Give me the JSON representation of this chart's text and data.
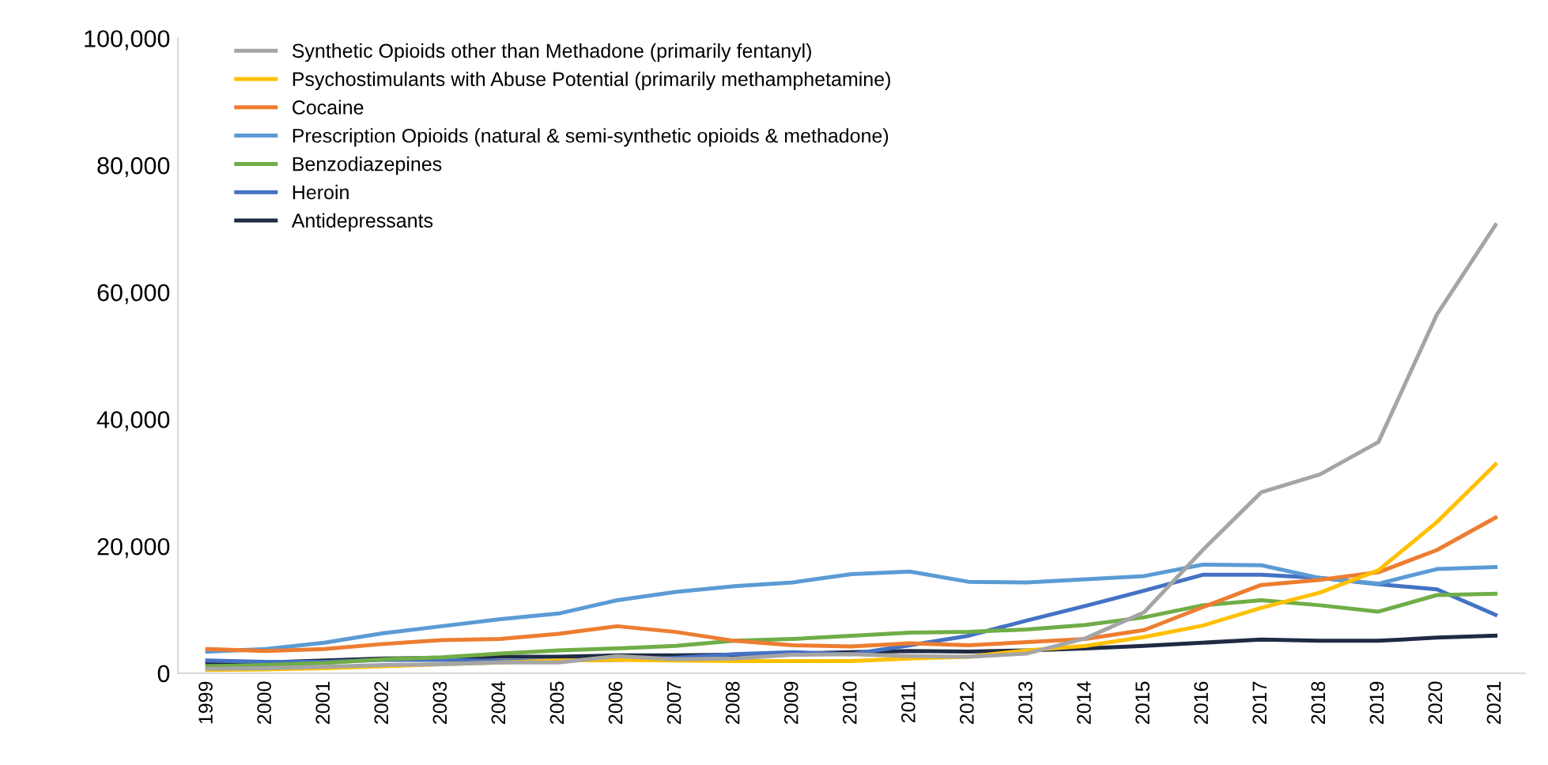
{
  "chart_data": {
    "type": "line",
    "categories": [
      "1999",
      "2000",
      "2001",
      "2002",
      "2003",
      "2004",
      "2005",
      "2006",
      "2007",
      "2008",
      "2009",
      "2010",
      "2011",
      "2012",
      "2013",
      "2014",
      "2015",
      "2016",
      "2017",
      "2018",
      "2019",
      "2020",
      "2021"
    ],
    "series": [
      {
        "name": "Synthetic Opioids other than Methadone (primarily fentanyl)",
        "color": "#a5a5a5",
        "values": [
          700,
          800,
          1000,
          1300,
          1400,
          1700,
          1700,
          2700,
          2200,
          2300,
          2900,
          3000,
          2700,
          2600,
          3100,
          5500,
          9600,
          19400,
          28500,
          31300,
          36400,
          56500,
          70600
        ]
      },
      {
        "name": "Psychostimulants with Abuse Potential (primarily methamphetamine)",
        "color": "#ffc000",
        "values": [
          500,
          600,
          800,
          1100,
          1400,
          1700,
          2000,
          2100,
          2000,
          1900,
          1900,
          1900,
          2300,
          2600,
          3600,
          4300,
          5700,
          7500,
          10300,
          12700,
          16200,
          23800,
          32900
        ]
      },
      {
        "name": "Cocaine",
        "color": "#ed7d31",
        "values": [
          3800,
          3500,
          3800,
          4600,
          5200,
          5400,
          6200,
          7400,
          6500,
          5100,
          4400,
          4200,
          4700,
          4400,
          4900,
          5400,
          6800,
          10400,
          13900,
          14700,
          15900,
          19400,
          24500
        ]
      },
      {
        "name": "Prescription Opioids (natural & semi-synthetic opioids & methadone)",
        "color": "#5b9bd5",
        "values": [
          3400,
          3800,
          4800,
          6300,
          7400,
          8500,
          9400,
          11500,
          12800,
          13700,
          14300,
          15600,
          16000,
          14400,
          14300,
          14800,
          15300,
          17100,
          17000,
          15000,
          14100,
          16400,
          16700
        ]
      },
      {
        "name": "Benzodiazepines",
        "color": "#70ad47",
        "values": [
          1100,
          1300,
          1600,
          2200,
          2500,
          3100,
          3600,
          3900,
          4300,
          5100,
          5400,
          5900,
          6400,
          6500,
          6900,
          7600,
          8800,
          10700,
          11500,
          10700,
          9700,
          12300,
          12500
        ]
      },
      {
        "name": "Heroin",
        "color": "#4472c4",
        "values": [
          2000,
          1800,
          1800,
          2100,
          2100,
          1900,
          2000,
          2100,
          2400,
          3000,
          3300,
          3000,
          4400,
          5900,
          8300,
          10600,
          13000,
          15500,
          15500,
          15000,
          14000,
          13200,
          9200
        ]
      },
      {
        "name": "Antidepressants",
        "color": "#1f2a44",
        "values": [
          1700,
          1700,
          2000,
          2300,
          2400,
          2600,
          2600,
          2800,
          2800,
          2900,
          3100,
          3300,
          3500,
          3400,
          3600,
          3900,
          4300,
          4800,
          5300,
          5100,
          5100,
          5600,
          5900
        ]
      }
    ],
    "ylim": [
      0,
      100000
    ],
    "yticks": [
      {
        "value": 0,
        "label": "0"
      },
      {
        "value": 20000,
        "label": "20,000"
      },
      {
        "value": 40000,
        "label": "40,000"
      },
      {
        "value": 60000,
        "label": "60,000"
      },
      {
        "value": 80000,
        "label": "80,000"
      },
      {
        "value": 100000,
        "label": "100,000"
      }
    ],
    "grid": false,
    "legend": "top left",
    "marker": "none",
    "line_style": "solid"
  }
}
